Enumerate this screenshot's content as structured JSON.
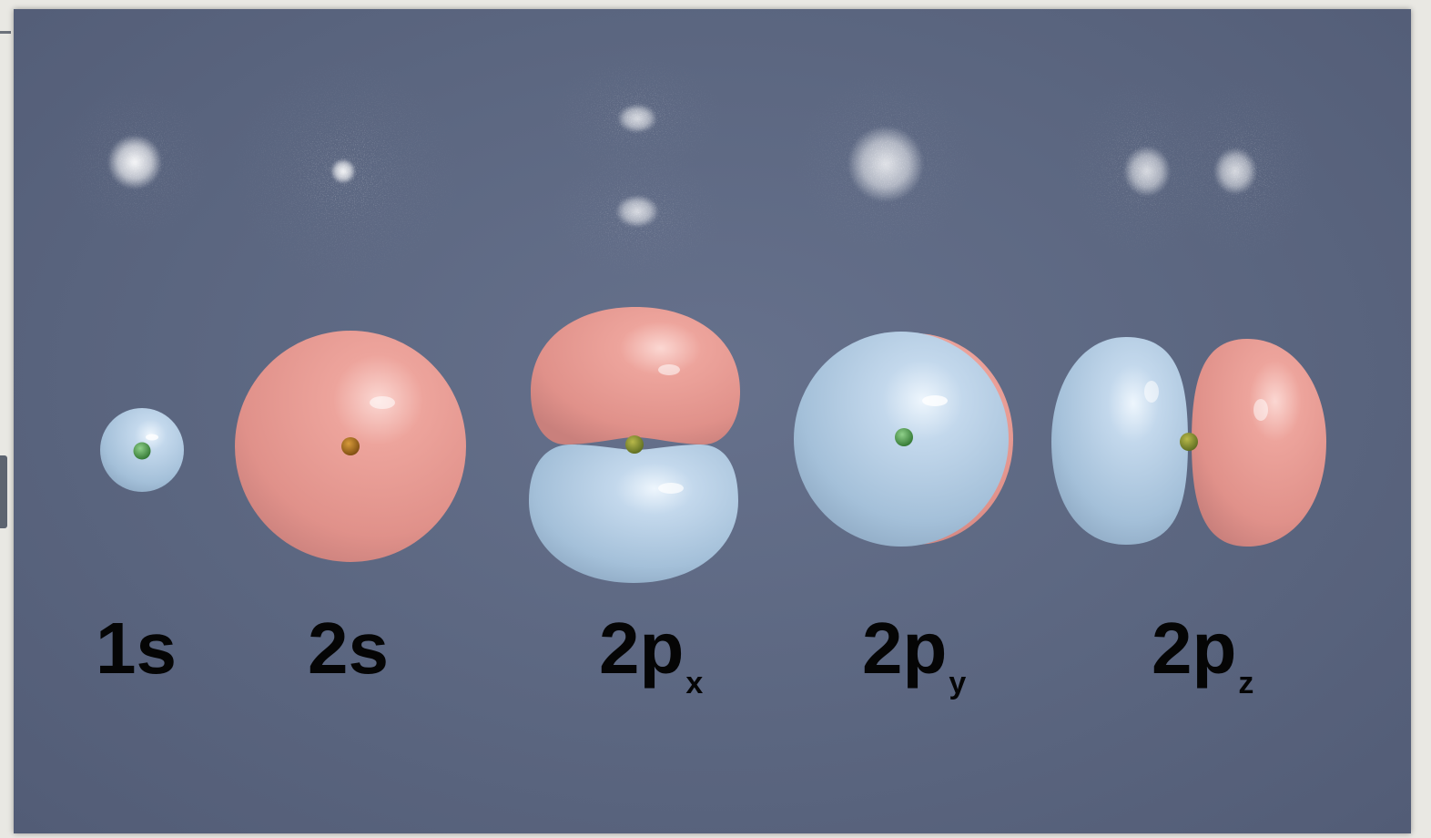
{
  "labels": {
    "s1": "1s",
    "s2": "2s",
    "px_main": "2p",
    "px_sub": "x",
    "py_main": "2p",
    "py_sub": "y",
    "pz_main": "2p",
    "pz_sub": "z"
  },
  "colors": {
    "background": "#5b6680",
    "positive_lobe": "#e8968f",
    "negative_lobe": "#a9c6df",
    "nucleus": "#3f8c3c",
    "cloud": "#ffffff"
  }
}
